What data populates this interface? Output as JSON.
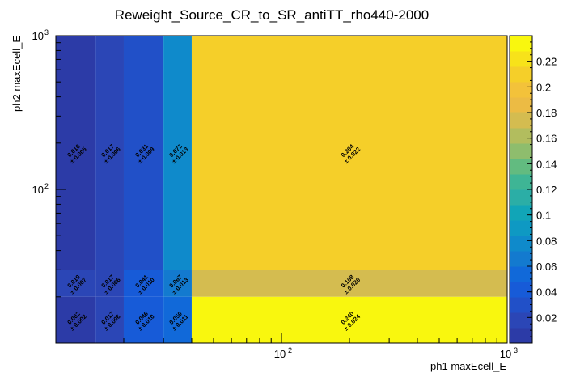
{
  "chart_data": {
    "type": "heatmap",
    "title": "Reweight_Source_CR_to_SR_antiTT_rho440-2000",
    "xlabel": "ph1 maxEcell_E",
    "ylabel": "ph2 maxEcell_E",
    "x_scale": "log",
    "y_scale": "log",
    "x_range": [
      10,
      1000
    ],
    "y_range": [
      10,
      1000
    ],
    "x_edges": [
      10,
      15,
      20,
      30,
      40,
      1000
    ],
    "y_edges": [
      10,
      20,
      30,
      1000
    ],
    "x_ticks": [
      {
        "value": 100,
        "label": "10",
        "exp": "2"
      },
      {
        "value": 1000,
        "label": "10",
        "exp": "3"
      }
    ],
    "y_ticks": [
      {
        "value": 100,
        "label": "10",
        "exp": "2"
      },
      {
        "value": 1000,
        "label": "10",
        "exp": "3"
      }
    ],
    "cells": [
      {
        "ix": 0,
        "iy": 2,
        "value": 0.01,
        "error": 0.005,
        "label": "0.010",
        "err_label": "± 0.005"
      },
      {
        "ix": 1,
        "iy": 2,
        "value": 0.017,
        "error": 0.006,
        "label": "0.017",
        "err_label": "± 0.006"
      },
      {
        "ix": 2,
        "iy": 2,
        "value": 0.031,
        "error": 0.009,
        "label": "0.031",
        "err_label": "± 0.009"
      },
      {
        "ix": 3,
        "iy": 2,
        "value": 0.072,
        "error": 0.013,
        "label": "0.072",
        "err_label": "± 0.013"
      },
      {
        "ix": 4,
        "iy": 2,
        "value": 0.204,
        "error": 0.022,
        "label": "0.204",
        "err_label": "± 0.022"
      },
      {
        "ix": 0,
        "iy": 1,
        "value": 0.019,
        "error": 0.007,
        "label": "0.019",
        "err_label": "± 0.007"
      },
      {
        "ix": 1,
        "iy": 1,
        "value": 0.017,
        "error": 0.006,
        "label": "0.017",
        "err_label": "± 0.006"
      },
      {
        "ix": 2,
        "iy": 1,
        "value": 0.041,
        "error": 0.01,
        "label": "0.041",
        "err_label": "± 0.010"
      },
      {
        "ix": 3,
        "iy": 1,
        "value": 0.067,
        "error": 0.013,
        "label": "0.067",
        "err_label": "± 0.013"
      },
      {
        "ix": 4,
        "iy": 1,
        "value": 0.168,
        "error": 0.02,
        "label": "0.168",
        "err_label": "± 0.020"
      },
      {
        "ix": 0,
        "iy": 0,
        "value": 0.002,
        "error": 0.002,
        "label": "0.002",
        "err_label": "± 0.002"
      },
      {
        "ix": 1,
        "iy": 0,
        "value": 0.017,
        "error": 0.006,
        "label": "0.017",
        "err_label": "± 0.006"
      },
      {
        "ix": 2,
        "iy": 0,
        "value": 0.046,
        "error": 0.01,
        "label": "0.046",
        "err_label": "± 0.010"
      },
      {
        "ix": 3,
        "iy": 0,
        "value": 0.05,
        "error": 0.011,
        "label": "0.050",
        "err_label": "± 0.011"
      },
      {
        "ix": 4,
        "iy": 0,
        "value": 0.24,
        "error": 0.024,
        "label": "0.240",
        "err_label": "± 0.024"
      }
    ],
    "colorbar": {
      "min": 0,
      "max": 0.24,
      "ticks": [
        "0.02",
        "0.04",
        "0.06",
        "0.08",
        "0.1",
        "0.12",
        "0.14",
        "0.16",
        "0.18",
        "0.2",
        "0.22"
      ],
      "tick_values": [
        0.02,
        0.04,
        0.06,
        0.08,
        0.1,
        0.12,
        0.14,
        0.16,
        0.18,
        0.2,
        0.22
      ],
      "palette": [
        "#2c3ba7",
        "#2b46b6",
        "#2150c8",
        "#175bd8",
        "#1169d9",
        "#137acf",
        "#0f8acb",
        "#0e99c3",
        "#11a5b7",
        "#2baea6",
        "#3eb595",
        "#62bb80",
        "#8ebd6d",
        "#b2bd5e",
        "#d4bc50",
        "#ecbb44",
        "#f3c23a",
        "#f5cf29",
        "#f7e21a",
        "#f9f70e"
      ]
    },
    "legend": "colorbar right",
    "grid": false
  }
}
